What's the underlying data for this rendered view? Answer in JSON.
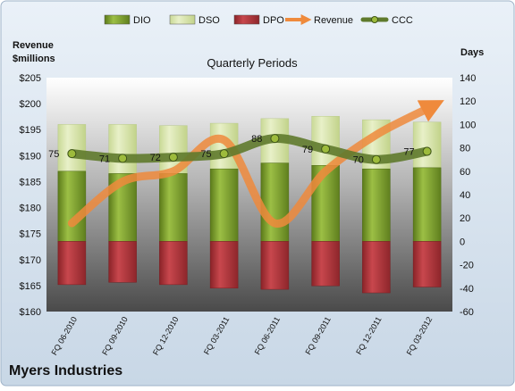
{
  "chart_data": {
    "type": "bar",
    "title": "Quarterly Periods",
    "company": "Myers Industries",
    "left_axis_label_line1": "Revenue",
    "left_axis_label_line2": "$millions",
    "right_axis_label": "Days",
    "categories": [
      "FQ 06-2010",
      "FQ 09-2010",
      "FQ 12-2010",
      "FQ 03-2011",
      "FQ 06-2011",
      "FQ 09-2011",
      "FQ 12-2011",
      "FQ 03-2012"
    ],
    "left_axis": {
      "min": 160,
      "max": 205,
      "step": 5,
      "tick_prefix": "$"
    },
    "right_axis": {
      "min": -60,
      "max": 140,
      "step": 20
    },
    "series": [
      {
        "name": "DIO",
        "type": "bar",
        "axis": "right",
        "color": "#7a9a2a",
        "values": [
          60,
          58,
          58,
          62,
          67,
          65,
          62,
          63
        ]
      },
      {
        "name": "DSO",
        "type": "bar",
        "axis": "right",
        "color": "#d7e4a8",
        "values": [
          40,
          42,
          41,
          39,
          38,
          42,
          42,
          39
        ]
      },
      {
        "name": "DPO",
        "type": "bar",
        "axis": "right",
        "color": "#a83238",
        "values": [
          -37,
          -35,
          -37,
          -40,
          -41,
          -38,
          -44,
          -39
        ]
      },
      {
        "name": "Revenue",
        "type": "line",
        "axis": "left",
        "color": "#ef8a3c",
        "values": [
          177,
          185,
          187,
          193,
          177,
          187,
          194,
          199
        ]
      },
      {
        "name": "CCC",
        "type": "line",
        "axis": "right",
        "color": "#5f7a2c",
        "values": [
          75,
          71,
          72,
          75,
          88,
          79,
          70,
          77
        ],
        "labels": [
          "75",
          "71",
          "72",
          "75",
          "88",
          "79",
          "70",
          "77"
        ]
      }
    ],
    "legend_position": "top",
    "grid": false
  }
}
